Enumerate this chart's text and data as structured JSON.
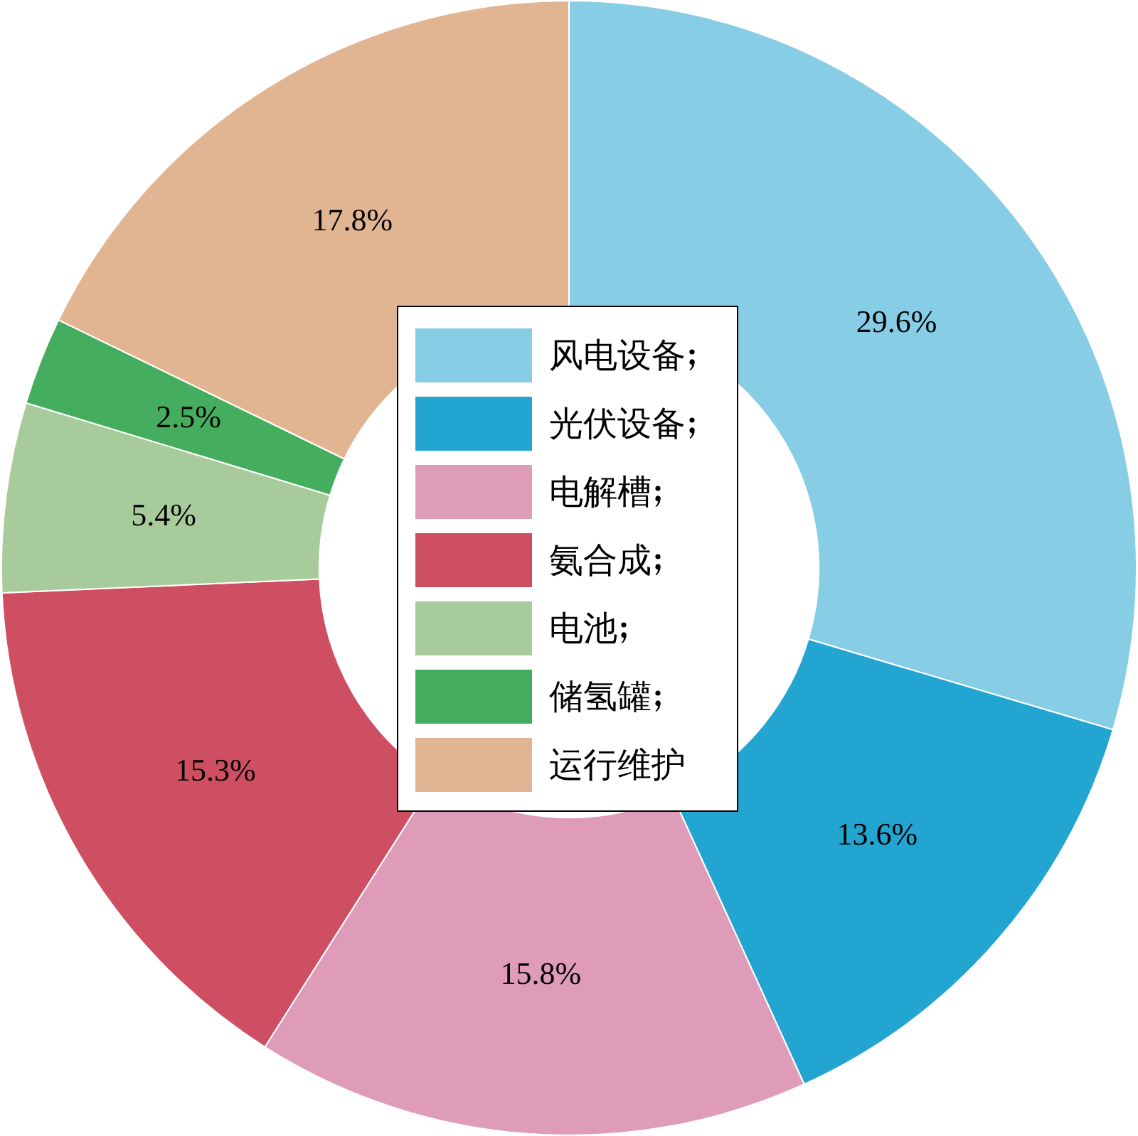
{
  "chart_data": {
    "type": "donut",
    "categories": [
      "风电设备",
      "光伏设备",
      "电解槽",
      "氨合成",
      "电池",
      "储氢罐",
      "运行维护"
    ],
    "values": [
      29.6,
      13.6,
      15.8,
      15.3,
      5.4,
      2.5,
      17.8
    ],
    "colors": [
      "#87cde6",
      "#22a5d1",
      "#de9cb9",
      "#cf4f62",
      "#a8cb9c",
      "#45ad5e",
      "#e2b592"
    ],
    "value_labels": [
      "29.6%",
      "13.6%",
      "15.8%",
      "15.3%",
      "5.4%",
      "2.5%",
      "17.8%"
    ],
    "legend": "center"
  }
}
